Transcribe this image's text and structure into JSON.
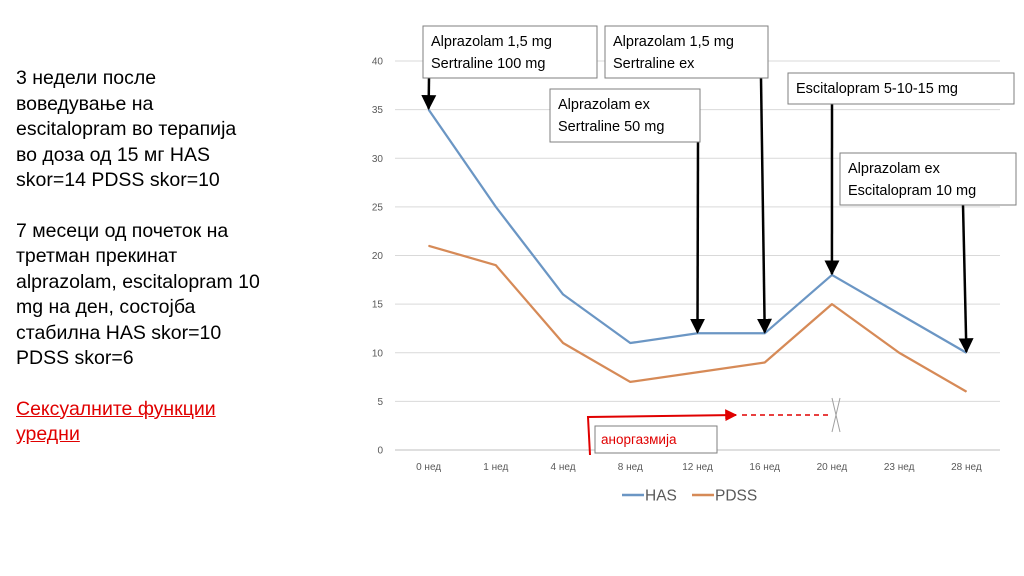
{
  "left_text": {
    "para1": [
      "3 недели после",
      "воведување на",
      "escitalopram во терапија",
      "во доза од 15 мг HAS",
      "skor=14  PDSS skor=10"
    ],
    "para2": [
      "7 месеци од почеток на",
      "третман прекинат",
      "alprazolam, escitalopram 10",
      "mg на ден, состојба",
      "стабилна HAS skor=10",
      "PDSS skor=6"
    ],
    "para3": [
      "Сексуалните функции",
      "уредни"
    ]
  },
  "chart_data": {
    "type": "line",
    "categories": [
      "0 нед",
      "1 нед",
      "4 нед",
      "8 нед",
      "12 нед",
      "16 нед",
      "20 нед",
      "23 нед",
      "28 нед"
    ],
    "series": [
      {
        "name": "HAS",
        "values": [
          35,
          25,
          16,
          11,
          12,
          12,
          18,
          14,
          10
        ],
        "color": "#6b96c4"
      },
      {
        "name": "PDSS",
        "values": [
          21,
          19,
          11,
          7,
          8,
          9,
          15,
          10,
          6
        ],
        "color": "#d68a57"
      }
    ],
    "ylim": [
      0,
      40
    ],
    "yticks": [
      0,
      5,
      10,
      15,
      20,
      25,
      30,
      35,
      40
    ],
    "grid": true,
    "legend": "bottom",
    "annotations": [
      {
        "lines": [
          "Alprazolam 1,5 mg",
          "Sertraline 100 mg"
        ],
        "category": "0 нед",
        "series": "HAS"
      },
      {
        "lines": [
          "Alprazolam ex",
          "Sertraline 50 mg"
        ],
        "category": "12 нед",
        "series": "HAS"
      },
      {
        "lines": [
          "Alprazolam 1,5 mg",
          "Sertraline ex"
        ],
        "category": "16 нед",
        "series": "HAS"
      },
      {
        "lines": [
          "Escitalopram 5-10-15 mg"
        ],
        "category": "20 нед",
        "series": "HAS"
      },
      {
        "lines": [
          "Alprazolam ex",
          "Escitalopram 10 mg"
        ],
        "category": "28 нед",
        "series": "HAS"
      }
    ],
    "anorgasmia": {
      "label": "аноргазмија",
      "color": "#e00000"
    }
  }
}
